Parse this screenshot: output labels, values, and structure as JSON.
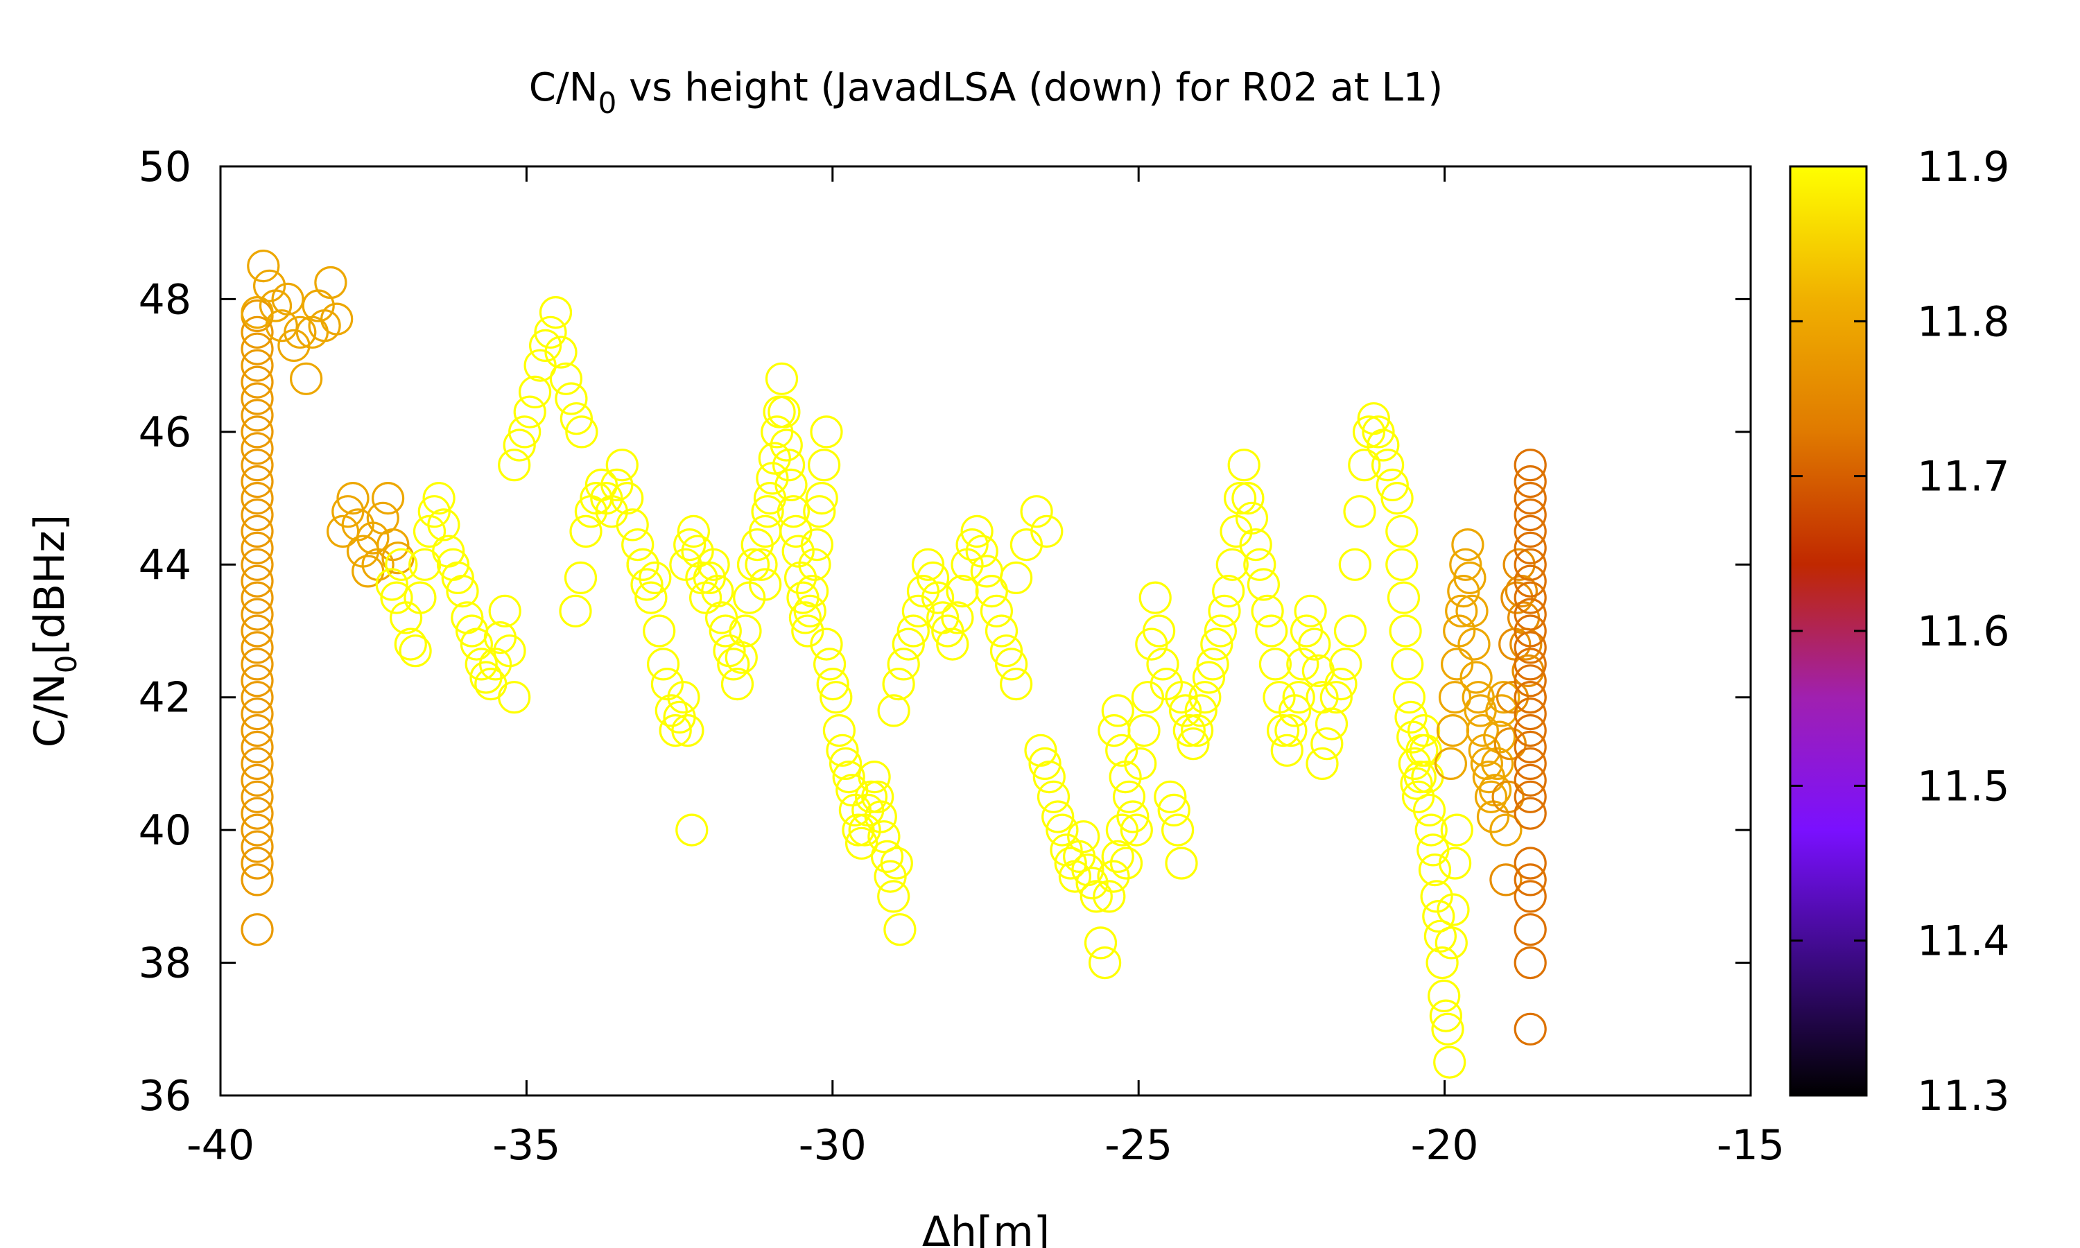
{
  "chart_data": {
    "type": "scatter",
    "title": {
      "pre": "C/N",
      "sub": "0",
      "post": " vs height (JavadLSA (down) for R02 at L1)"
    },
    "xlabel": "Δh[m]",
    "ylabel": {
      "pre": "C/N",
      "sub": "0",
      "post": "[dBHz]"
    },
    "xlim": [
      -40,
      -15
    ],
    "ylim": [
      36,
      50
    ],
    "xticks": [
      -40,
      -35,
      -30,
      -25,
      -20,
      -15
    ],
    "yticks": [
      36,
      38,
      40,
      42,
      44,
      46,
      48,
      50
    ],
    "marker": "open-circle",
    "colorbar": {
      "range": [
        11.3,
        11.9
      ],
      "ticks": [
        11.3,
        11.4,
        11.5,
        11.6,
        11.7,
        11.8,
        11.9
      ],
      "tick_labels": [
        "11.3",
        "11.4",
        "11.5",
        "11.6",
        "11.7",
        "11.8",
        "11.9"
      ],
      "colormap": [
        "#000000",
        "#3a0a80",
        "#7a10ff",
        "#a020b0",
        "#c02800",
        "#e07a00",
        "#f0b000",
        "#ffff00"
      ]
    },
    "segments": [
      {
        "x0": -39.4,
        "x1": -39.4,
        "ys": [
          38.5,
          39.25,
          39.5,
          39.75,
          40,
          40.25,
          40.5,
          40.75,
          41,
          41.25,
          41.5,
          41.75,
          42,
          42.25,
          42.5,
          42.75,
          43,
          43.25,
          43.5,
          43.75,
          44,
          44.25,
          44.5,
          44.75,
          45,
          45.25,
          45.5,
          45.75,
          46,
          46.25,
          46.5,
          46.75,
          47,
          47.25,
          47.5,
          47.75
        ],
        "c": 11.78
      },
      {
        "x0": -39.4,
        "x1": -38.1,
        "ys": [
          47.8,
          48.5,
          48.2,
          47.9,
          47.6,
          48,
          47.3,
          47.5,
          46.8,
          47.5,
          47.9,
          47.6,
          48.25,
          47.7
        ],
        "c": 11.8
      },
      {
        "x0": -38.0,
        "x1": -37.1,
        "ys": [
          44.5,
          44.8,
          45,
          44.6,
          44.2,
          43.9,
          44.4,
          44,
          44.7,
          45,
          44.3,
          44.1
        ],
        "c": 11.8
      },
      {
        "x0": -37.2,
        "x1": -35.2,
        "ys": [
          43.7,
          43.5,
          44,
          43.2,
          42.8,
          42.7,
          43.5,
          44,
          44.5,
          44.8,
          45,
          44.6,
          44.2,
          44,
          43.8,
          43.6,
          43.2,
          43,
          42.8,
          42.5,
          42.3,
          42.2,
          42.5,
          42.9,
          43.3,
          42.7,
          42
        ],
        "c": 11.9
      },
      {
        "x0": -35.2,
        "x1": -34.1,
        "ys": [
          45.5,
          45.8,
          46,
          46.3,
          46.6,
          47,
          47.3,
          47.5,
          47.8,
          47.2,
          46.8,
          46.5,
          46.2,
          46.0
        ],
        "c": 11.9
      },
      {
        "x0": -34.2,
        "x1": -33.1,
        "ys": [
          43.3,
          43.8,
          44.5,
          44.8,
          45,
          45.2,
          45,
          44.8,
          45.2,
          45.5,
          45,
          44.6,
          44.3,
          44
        ],
        "c": 11.9
      },
      {
        "x0": -33.1,
        "x1": -32.3,
        "ys": [
          44,
          43.7,
          43.5,
          43.8,
          43,
          42.5,
          42.2,
          41.8,
          41.5,
          41.7,
          42,
          41.5,
          40
        ],
        "c": 11.9
      },
      {
        "x0": -32.4,
        "x1": -31.1,
        "ys": [
          44,
          44.3,
          44.5,
          44.2,
          43.8,
          43.5,
          43.8,
          44,
          43.6,
          43.2,
          43,
          42.7,
          42.5,
          42.2,
          42.6,
          43,
          43.5,
          44,
          44.3,
          44,
          43.7
        ],
        "c": 11.9
      },
      {
        "x0": -31.1,
        "x1": -30.1,
        "ys": [
          44.5,
          44.8,
          45,
          45.3,
          45.6,
          46,
          46.3,
          46.8,
          46.3,
          45.8,
          45.5,
          45.2,
          44.8,
          44.5,
          44.2,
          43.8,
          43.5,
          43.2,
          43,
          43.3,
          43.6,
          44,
          44.3,
          44.8,
          45,
          45.5,
          46
        ],
        "c": 11.9
      },
      {
        "x0": -30.1,
        "x1": -28.9,
        "ys": [
          42.8,
          42.5,
          42.2,
          42,
          41.5,
          41.2,
          41,
          40.8,
          40.6,
          40.3,
          40,
          39.8,
          40,
          40.3,
          40.5,
          40.8,
          40.5,
          40.2,
          39.9,
          39.6,
          39.3,
          39,
          39.5,
          38.5
        ],
        "c": 11.9
      },
      {
        "x0": -29.0,
        "x1": -27.0,
        "ys": [
          41.8,
          42.2,
          42.5,
          42.8,
          43,
          43.3,
          43.6,
          44,
          43.8,
          43.5,
          43.2,
          43,
          42.8,
          43.2,
          43.6,
          44,
          44.3,
          44.5,
          44.2,
          43.9,
          43.6,
          43.3,
          43,
          42.7,
          42.5,
          42.2
        ],
        "c": 11.9
      },
      {
        "x0": -27.0,
        "x1": -26.5,
        "ys": [
          43.8,
          44.3,
          44.8,
          44.5
        ],
        "c": 11.9
      },
      {
        "x0": -26.6,
        "x1": -25.2,
        "ys": [
          41.2,
          41,
          40.8,
          40.5,
          40.2,
          40,
          39.7,
          39.5,
          39.3,
          39.6,
          39.9,
          39.4,
          39.2,
          39,
          38.3,
          38,
          39,
          39.3,
          39.6,
          40,
          39.5
        ],
        "c": 11.9
      },
      {
        "x0": -25.4,
        "x1": -24.3,
        "ys": [
          41.5,
          41.8,
          41.2,
          40.8,
          40.5,
          40.2,
          40,
          41,
          41.5,
          42,
          42.8,
          43.5,
          43,
          42.5,
          42.2,
          40.5,
          40.3,
          40,
          39.5
        ],
        "c": 11.9
      },
      {
        "x0": -24.3,
        "x1": -22.0,
        "ys": [
          42,
          41.8,
          41.5,
          41.3,
          41.5,
          41.8,
          42,
          42.3,
          42.5,
          42.8,
          43,
          43.3,
          43.6,
          44,
          44.5,
          45,
          45.5,
          45,
          44.7,
          44.3,
          44,
          43.7,
          43.3,
          43,
          42.5,
          42,
          41.5,
          41.2,
          41.5,
          41.8,
          42,
          42.5,
          43,
          43.3,
          42.8,
          42.4,
          42
        ],
        "c": 11.9
      },
      {
        "x0": -22.0,
        "x1": -20.7,
        "ys": [
          41,
          41.3,
          41.6,
          42,
          42.2,
          42.5,
          43,
          44,
          44.8,
          45.5,
          46,
          46.2,
          46,
          45.8,
          45.5,
          45.2,
          45,
          44.5
        ],
        "c": 11.9
      },
      {
        "x0": -20.7,
        "x1": -19.8,
        "ys": [
          44,
          43.5,
          43,
          42.5,
          42,
          41.7,
          41.4,
          41,
          40.7,
          40.5,
          40.8,
          41.2,
          41.5,
          41.2,
          40.8,
          40.3,
          40,
          39.7,
          39.4,
          39,
          38.7,
          38.4,
          38,
          37.5,
          37.2,
          37,
          36.5,
          38.3,
          38.8,
          39.5,
          40
        ],
        "c": 11.9
      },
      {
        "x0": -19.9,
        "x1": -19.0,
        "ys": [
          41,
          41.5,
          42,
          42.5,
          43,
          43.3,
          43.6,
          44,
          44.3,
          43.8,
          43.3,
          42.8,
          42.3,
          42,
          41.8,
          41.5,
          41.2,
          41,
          40.8,
          40.5,
          40.2,
          40.6,
          41,
          41.4,
          41.8,
          42,
          40
        ],
        "c": 11.8
      },
      {
        "x0": -19.0,
        "x1": -18.6,
        "ys": [
          39.25,
          40.5,
          41.3,
          42,
          42.8,
          43.5,
          44,
          43.6,
          43.2,
          42.8,
          42.4,
          42
        ],
        "c": 11.76
      },
      {
        "x0": -18.6,
        "x1": -18.6,
        "ys": [
          37,
          38,
          38.5,
          39,
          39.25,
          39.5,
          40.25,
          40.5,
          40.75,
          41,
          41.25,
          41.5,
          41.75,
          42,
          42.25,
          42.5,
          42.75,
          43,
          43.25,
          43.5,
          43.75,
          44,
          44.25,
          44.5,
          44.75,
          45,
          45.25,
          45.5
        ],
        "c": 11.72
      }
    ]
  }
}
